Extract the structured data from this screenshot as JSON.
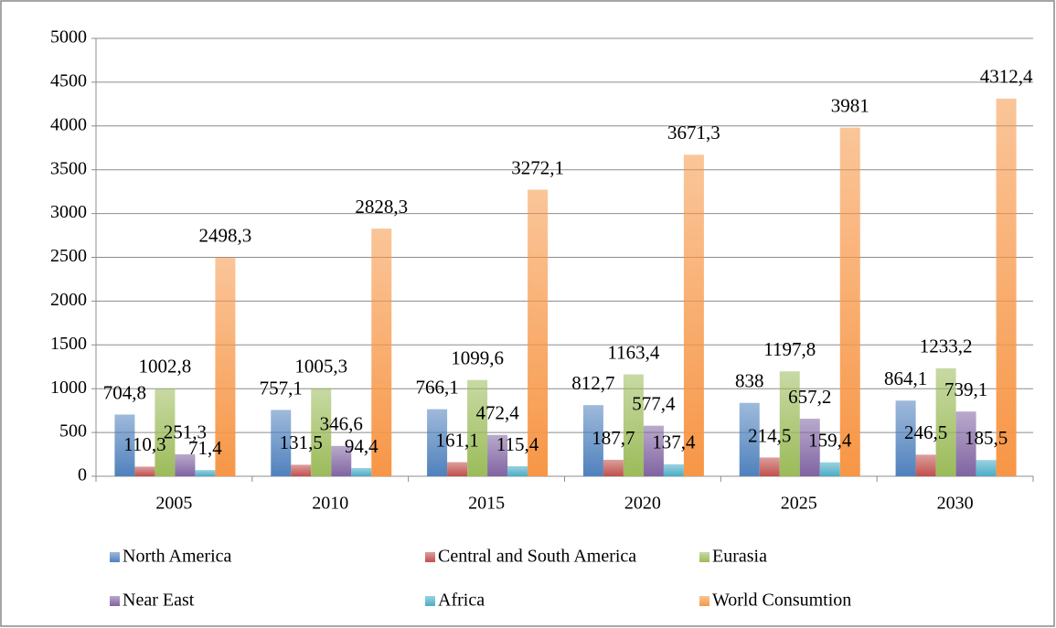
{
  "chart_data": {
    "type": "bar",
    "categories": [
      "2005",
      "2010",
      "2015",
      "2020",
      "2025",
      "2030"
    ],
    "series": [
      {
        "name": "North America",
        "color": "#4f81bd",
        "values": [
          704.8,
          757.1,
          766.1,
          812.7,
          838,
          864.1
        ],
        "value_labels": [
          "704,8",
          "757,1",
          "766,1",
          "812,7",
          "838",
          "864,1"
        ]
      },
      {
        "name": "Central and South America",
        "color": "#c0504d",
        "values": [
          110.3,
          131.5,
          161.1,
          187.7,
          214.5,
          246.5
        ],
        "value_labels": [
          "110,3",
          "131,5",
          "161,1",
          "187,7",
          "214,5",
          "246,5"
        ]
      },
      {
        "name": "Eurasia",
        "color": "#9bbb59",
        "values": [
          1002.8,
          1005.3,
          1099.6,
          1163.4,
          1197.8,
          1233.2
        ],
        "value_labels": [
          "1002,8",
          "1005,3",
          "1099,6",
          "1163,4",
          "1197,8",
          "1233,2"
        ]
      },
      {
        "name": "Near East",
        "color": "#8064a2",
        "values": [
          251.3,
          346.6,
          472.4,
          577.4,
          657.2,
          739.1
        ],
        "value_labels": [
          "251,3",
          "346,6",
          "472,4",
          "577,4",
          "657,2",
          "739,1"
        ]
      },
      {
        "name": "Africa",
        "color": "#4bacc6",
        "values": [
          71.4,
          94.4,
          115.4,
          137.4,
          159.4,
          185.5
        ],
        "value_labels": [
          "71,4",
          "94,4",
          "115,4",
          "137,4",
          "159,4",
          "185,5"
        ]
      },
      {
        "name": "World Consumtion",
        "color": "#f79646",
        "values": [
          2498.3,
          2828.3,
          3272.1,
          3671.3,
          3981,
          4312.4
        ],
        "value_labels": [
          "2498,3",
          "2828,3",
          "3272,1",
          "3671,3",
          "3981",
          "4312,4"
        ]
      }
    ],
    "ylim": [
      0,
      5000
    ],
    "yticks": [
      0,
      500,
      1000,
      1500,
      2000,
      2500,
      3000,
      3500,
      4000,
      4500,
      5000
    ],
    "grid": true,
    "legend": "bottom"
  }
}
